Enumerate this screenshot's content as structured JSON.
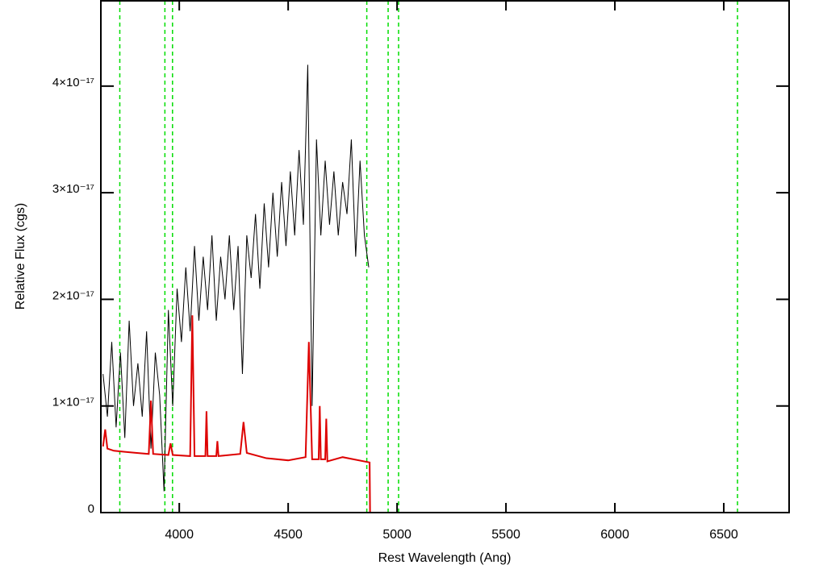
{
  "chart_data": {
    "type": "line",
    "xlabel": "Rest Wavelength (Ang)",
    "ylabel": "Relative Flux (cgs)",
    "xlim": [
      3640,
      6800
    ],
    "ylim": [
      0,
      4.8e-17
    ],
    "xticks": [
      4000,
      4500,
      5000,
      5500,
      6000,
      6500
    ],
    "yticks": [
      0,
      {
        "value": 1e-17,
        "label": "1×10⁻¹⁷"
      },
      {
        "value": 2e-17,
        "label": "2×10⁻¹⁷"
      },
      {
        "value": 3e-17,
        "label": "3×10⁻¹⁷"
      },
      {
        "value": 4e-17,
        "label": "4×10⁻¹⁷"
      }
    ],
    "reference_lines": {
      "color": "#00dd00",
      "values": [
        3727,
        3934,
        3969,
        4861,
        4959,
        5007,
        6563
      ]
    },
    "series": [
      {
        "color": "#000000",
        "x": [
          3650,
          3670,
          3690,
          3710,
          3730,
          3750,
          3770,
          3790,
          3810,
          3830,
          3850,
          3870,
          3890,
          3910,
          3930,
          3950,
          3970,
          3990,
          4010,
          4030,
          4050,
          4070,
          4090,
          4110,
          4130,
          4150,
          4170,
          4190,
          4210,
          4230,
          4250,
          4270,
          4290,
          4310,
          4330,
          4350,
          4370,
          4390,
          4410,
          4430,
          4450,
          4470,
          4490,
          4510,
          4530,
          4550,
          4570,
          4590,
          4610,
          4630,
          4650,
          4670,
          4690,
          4710,
          4730,
          4750,
          4770,
          4790,
          4810,
          4830,
          4850,
          4870
        ],
        "values": [
          1.3e-17,
          9e-18,
          1.6e-17,
          8e-18,
          1.5e-17,
          7e-18,
          1.8e-17,
          1e-17,
          1.4e-17,
          9e-18,
          1.7e-17,
          6e-18,
          1.5e-17,
          1.1e-17,
          2e-18,
          1.9e-17,
          1e-17,
          2.1e-17,
          1.6e-17,
          2.3e-17,
          1.7e-17,
          2.5e-17,
          1.8e-17,
          2.4e-17,
          1.9e-17,
          2.6e-17,
          1.8e-17,
          2.4e-17,
          2e-17,
          2.6e-17,
          1.9e-17,
          2.5e-17,
          1.3e-17,
          2.6e-17,
          2.2e-17,
          2.8e-17,
          2.1e-17,
          2.9e-17,
          2.3e-17,
          3e-17,
          2.4e-17,
          3.1e-17,
          2.5e-17,
          3.2e-17,
          2.6e-17,
          3.4e-17,
          2.7e-17,
          4.2e-17,
          1e-17,
          3.5e-17,
          2.6e-17,
          3.3e-17,
          2.7e-17,
          3.2e-17,
          2.6e-17,
          3.1e-17,
          2.8e-17,
          3.5e-17,
          2.4e-17,
          3.3e-17,
          2.6e-17,
          2.3e-17
        ]
      },
      {
        "color": "#dd0000",
        "x": [
          3650,
          3660,
          3670,
          3700,
          3750,
          3800,
          3860,
          3870,
          3880,
          3950,
          3960,
          3970,
          4050,
          4060,
          4070,
          4120,
          4125,
          4130,
          4170,
          4175,
          4180,
          4280,
          4295,
          4310,
          4400,
          4500,
          4580,
          4595,
          4610,
          4640,
          4645,
          4650,
          4670,
          4675,
          4680,
          4750,
          4800,
          4874,
          4876,
          6800
        ],
        "values": [
          6.2e-18,
          7.8e-18,
          6e-18,
          5.8e-18,
          5.7e-18,
          5.6e-18,
          5.5e-18,
          1.05e-17,
          5.5e-18,
          5.4e-18,
          6.5e-18,
          5.4e-18,
          5.3e-18,
          1.85e-17,
          5.3e-18,
          5.3e-18,
          9.5e-18,
          5.3e-18,
          5.3e-18,
          6.7e-18,
          5.3e-18,
          5.5e-18,
          8.5e-18,
          5.6e-18,
          5.1e-18,
          4.9e-18,
          5.2e-18,
          1.6e-17,
          5e-18,
          5e-18,
          1e-17,
          5e-18,
          5e-18,
          8.8e-18,
          4.8e-18,
          5.2e-18,
          5e-18,
          4.7e-18,
          0,
          0
        ]
      }
    ]
  }
}
